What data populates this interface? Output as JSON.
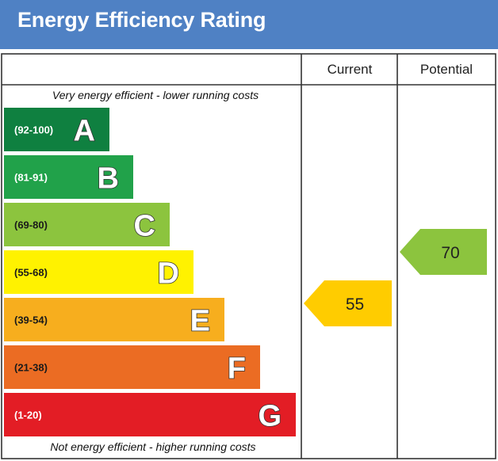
{
  "header": {
    "title": "Energy Efficiency Rating"
  },
  "chart_data": {
    "type": "bar",
    "title": "Energy Efficiency Rating",
    "columns": [
      "Current",
      "Potential"
    ],
    "top_note": "Very energy efficient - lower running costs",
    "bottom_note": "Not energy efficient - higher running costs",
    "bands": [
      {
        "letter": "A",
        "range": "(92-100)",
        "min": 92,
        "max": 100,
        "color": "#0f8040",
        "range_color": "#ffffff",
        "letter_fill": "#ffffff"
      },
      {
        "letter": "B",
        "range": "(81-91)",
        "min": 81,
        "max": 91,
        "color": "#21a24a",
        "range_color": "#ffffff",
        "letter_fill": "#ffffff"
      },
      {
        "letter": "C",
        "range": "(69-80)",
        "min": 69,
        "max": 80,
        "color": "#8cc43e",
        "range_color": "#1a1a1a",
        "letter_fill": "#ffffff"
      },
      {
        "letter": "D",
        "range": "(55-68)",
        "min": 55,
        "max": 68,
        "color": "#fff200",
        "range_color": "#1a1a1a",
        "letter_fill": "#ffffff"
      },
      {
        "letter": "E",
        "range": "(39-54)",
        "min": 39,
        "max": 54,
        "color": "#f7ae1e",
        "range_color": "#1a1a1a",
        "letter_fill": "#ffffff"
      },
      {
        "letter": "F",
        "range": "(21-38)",
        "min": 21,
        "max": 38,
        "color": "#eb6c23",
        "range_color": "#1a1a1a",
        "letter_fill": "#ffffff"
      },
      {
        "letter": "G",
        "range": "(1-20)",
        "min": 1,
        "max": 20,
        "color": "#e31d25",
        "range_color": "#ffffff",
        "letter_fill": "#ffffff"
      }
    ],
    "ratings": [
      {
        "column": "Current",
        "value": 55,
        "band": "D",
        "color": "#ffcc00"
      },
      {
        "column": "Potential",
        "value": 70,
        "band": "C",
        "color": "#8cc43e"
      }
    ]
  }
}
